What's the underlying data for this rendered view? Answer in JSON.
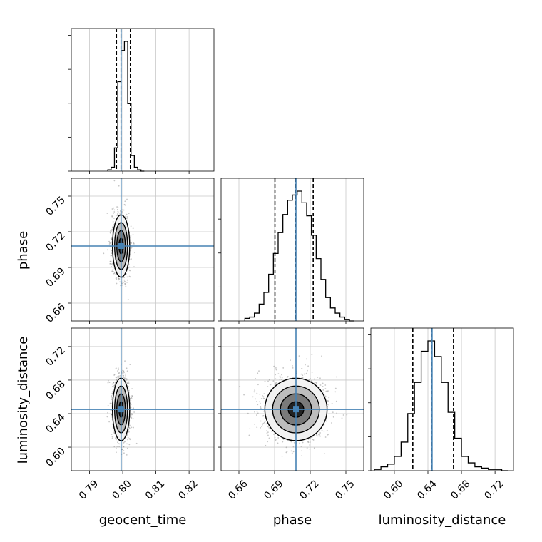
{
  "chart_data": {
    "type": "corner",
    "parameters": [
      "geocent_time",
      "phase",
      "luminosity_distance"
    ],
    "truths": [
      0.7995,
      0.708,
      0.645
    ],
    "quantiles": [
      [
        0.7981,
        0.7995,
        0.8023
      ],
      [
        0.6903,
        0.7075,
        0.7225
      ],
      [
        0.622,
        0.6445,
        0.6705
      ]
    ],
    "ranges": [
      [
        0.7845,
        0.8275
      ],
      [
        0.645,
        0.765
      ],
      [
        0.572,
        0.742
      ]
    ],
    "ticks": [
      [
        "0.79",
        "0.80",
        "0.81",
        "0.82"
      ],
      [
        "0.66",
        "0.69",
        "0.72",
        "0.75"
      ],
      [
        "0.60",
        "0.64",
        "0.68",
        "0.72"
      ]
    ],
    "histograms": [
      {
        "param": "geocent_time",
        "bin_edges": [
          0.7955,
          0.7965,
          0.7975,
          0.7985,
          0.7995,
          0.8005,
          0.8015,
          0.8025,
          0.8035,
          0.8045,
          0.8055,
          0.8065
        ],
        "counts": [
          1,
          3,
          18,
          69,
          93,
          100,
          52,
          12,
          3,
          1,
          0
        ]
      },
      {
        "param": "phase",
        "bin_edges": [
          0.665,
          0.669,
          0.673,
          0.677,
          0.681,
          0.685,
          0.689,
          0.693,
          0.697,
          0.701,
          0.705,
          0.709,
          0.713,
          0.717,
          0.721,
          0.725,
          0.729,
          0.733,
          0.737,
          0.741,
          0.745,
          0.749,
          0.753,
          0.757
        ],
        "counts": [
          2,
          3,
          6,
          13,
          22,
          36,
          52,
          68,
          82,
          93,
          97,
          100,
          91,
          81,
          66,
          48,
          32,
          18,
          10,
          6,
          3,
          1,
          0
        ]
      },
      {
        "param": "luminosity_distance",
        "bin_edges": [
          0.576,
          0.584,
          0.592,
          0.6,
          0.608,
          0.616,
          0.624,
          0.632,
          0.64,
          0.648,
          0.656,
          0.664,
          0.672,
          0.68,
          0.688,
          0.696,
          0.704,
          0.712,
          0.72,
          0.728,
          0.736
        ],
        "counts": [
          1,
          3,
          5,
          11,
          22,
          44,
          68,
          92,
          100,
          88,
          68,
          45,
          25,
          11,
          6,
          3,
          2,
          1,
          1,
          0
        ]
      }
    ],
    "pairs": [
      {
        "x": "geocent_time",
        "y": "phase",
        "mean": [
          0.7995,
          0.708
        ],
        "sd": [
          0.0013,
          0.0131
        ]
      },
      {
        "x": "geocent_time",
        "y": "luminosity_distance",
        "mean": [
          0.7995,
          0.645
        ],
        "sd": [
          0.0013,
          0.0186
        ]
      },
      {
        "x": "phase",
        "y": "luminosity_distance",
        "mean": [
          0.708,
          0.645
        ],
        "sd": [
          0.0131,
          0.0186
        ]
      }
    ],
    "contour_levels": [
      0.5,
      1.0,
      1.5,
      2.0
    ],
    "grid": true,
    "colors": {
      "line": "#000000",
      "truth": "#4682b4",
      "grid": "#c8c8c8",
      "points": "#808080"
    }
  }
}
